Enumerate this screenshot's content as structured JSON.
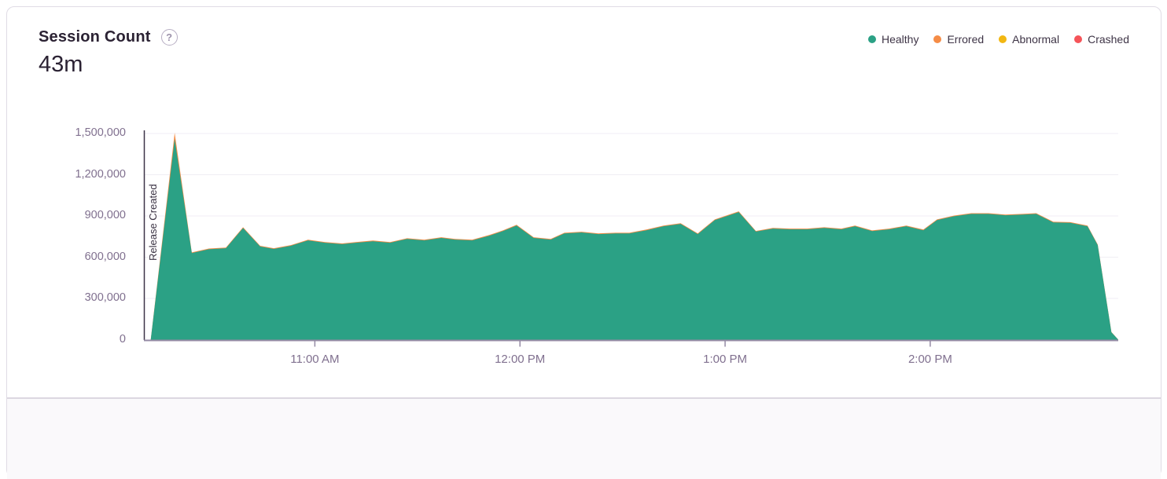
{
  "card": {
    "title": "Session Count",
    "help_icon": "?",
    "big_value": "43m",
    "legend": [
      {
        "label": "Healthy",
        "color": "#2ba185"
      },
      {
        "label": "Errored",
        "color": "#f58c46"
      },
      {
        "label": "Abnormal",
        "color": "#f2b712"
      },
      {
        "label": "Crashed",
        "color": "#f55459"
      }
    ]
  },
  "chart_data": {
    "type": "area",
    "stacked": true,
    "title": "Session Count",
    "ylabel": "",
    "xlabel": "",
    "unit": "sessions",
    "grid": true,
    "legend_position": "top-right",
    "x_axis": {
      "start_time": "10:10 AM",
      "end_time": "2:55 PM",
      "t_unit": "minutes after 10:10 AM",
      "tick_minutes": [
        50,
        110,
        170,
        230
      ],
      "tick_labels": [
        "11:00 AM",
        "12:00 PM",
        "1:00 PM",
        "2:00 PM"
      ]
    },
    "y_axis": {
      "ticks": [
        0,
        300000,
        600000,
        900000,
        1200000,
        1500000
      ],
      "tick_labels": [
        "0",
        "300,000",
        "600,000",
        "900,000",
        "1,200,000",
        "1,500,000"
      ],
      "ylim": [
        0,
        1500000
      ]
    },
    "annotation": {
      "label": "Release Created",
      "at_minute": 0,
      "line_color": "#3d3548"
    },
    "series": [
      {
        "name": "Healthy",
        "color": "#2ba185",
        "points": [
          [
            2,
            0
          ],
          [
            9,
            1460000
          ],
          [
            14,
            630000
          ],
          [
            19,
            658000
          ],
          [
            24,
            665000
          ],
          [
            29,
            812000
          ],
          [
            34,
            678000
          ],
          [
            38,
            660000
          ],
          [
            43,
            683000
          ],
          [
            48,
            722000
          ],
          [
            53,
            705000
          ],
          [
            58,
            695000
          ],
          [
            62,
            705000
          ],
          [
            67,
            716000
          ],
          [
            72,
            705000
          ],
          [
            77,
            733000
          ],
          [
            82,
            722000
          ],
          [
            87,
            740000
          ],
          [
            91,
            728000
          ],
          [
            96,
            722000
          ],
          [
            101,
            756000
          ],
          [
            105,
            790000
          ],
          [
            109,
            830000
          ],
          [
            114,
            740000
          ],
          [
            119,
            728000
          ],
          [
            123,
            773000
          ],
          [
            128,
            780000
          ],
          [
            133,
            768000
          ],
          [
            138,
            773000
          ],
          [
            142,
            773000
          ],
          [
            147,
            796000
          ],
          [
            152,
            825000
          ],
          [
            157,
            842000
          ],
          [
            162,
            768000
          ],
          [
            167,
            870000
          ],
          [
            174,
            928000
          ],
          [
            179,
            786000
          ],
          [
            184,
            808000
          ],
          [
            189,
            803000
          ],
          [
            194,
            803000
          ],
          [
            199,
            813000
          ],
          [
            204,
            803000
          ],
          [
            208,
            825000
          ],
          [
            213,
            790000
          ],
          [
            218,
            803000
          ],
          [
            223,
            825000
          ],
          [
            228,
            796000
          ],
          [
            232,
            870000
          ],
          [
            237,
            898000
          ],
          [
            242,
            915000
          ],
          [
            247,
            915000
          ],
          [
            252,
            905000
          ],
          [
            257,
            910000
          ],
          [
            261,
            915000
          ],
          [
            266,
            853000
          ],
          [
            271,
            850000
          ],
          [
            276,
            825000
          ],
          [
            279,
            688000
          ],
          [
            283,
            54000
          ],
          [
            285,
            0
          ]
        ]
      },
      {
        "name": "Errored",
        "color": "#f58c46",
        "points": [
          [
            2,
            0
          ],
          [
            9,
            45000
          ],
          [
            14,
            5000
          ],
          [
            19,
            5000
          ],
          [
            24,
            5000
          ],
          [
            29,
            6000
          ],
          [
            34,
            5000
          ],
          [
            38,
            5000
          ],
          [
            43,
            5000
          ],
          [
            48,
            5000
          ],
          [
            53,
            5000
          ],
          [
            58,
            5000
          ],
          [
            62,
            5000
          ],
          [
            67,
            5000
          ],
          [
            72,
            5000
          ],
          [
            77,
            5000
          ],
          [
            82,
            5000
          ],
          [
            87,
            5000
          ],
          [
            91,
            5000
          ],
          [
            96,
            5000
          ],
          [
            101,
            5000
          ],
          [
            105,
            5000
          ],
          [
            109,
            6000
          ],
          [
            114,
            5000
          ],
          [
            119,
            5000
          ],
          [
            123,
            5000
          ],
          [
            128,
            5000
          ],
          [
            133,
            5000
          ],
          [
            138,
            5000
          ],
          [
            142,
            5000
          ],
          [
            147,
            5000
          ],
          [
            152,
            5000
          ],
          [
            157,
            5000
          ],
          [
            162,
            5000
          ],
          [
            167,
            5000
          ],
          [
            174,
            6000
          ],
          [
            179,
            5000
          ],
          [
            184,
            5000
          ],
          [
            189,
            5000
          ],
          [
            194,
            5000
          ],
          [
            199,
            5000
          ],
          [
            204,
            5000
          ],
          [
            208,
            5000
          ],
          [
            213,
            5000
          ],
          [
            218,
            5000
          ],
          [
            223,
            5000
          ],
          [
            228,
            5000
          ],
          [
            232,
            5000
          ],
          [
            237,
            5000
          ],
          [
            242,
            5000
          ],
          [
            247,
            5000
          ],
          [
            252,
            5000
          ],
          [
            257,
            5000
          ],
          [
            261,
            5000
          ],
          [
            266,
            5000
          ],
          [
            271,
            5000
          ],
          [
            276,
            5000
          ],
          [
            279,
            4000
          ],
          [
            283,
            2000
          ],
          [
            285,
            0
          ]
        ]
      },
      {
        "name": "Abnormal",
        "color": "#f2b712",
        "points": []
      },
      {
        "name": "Crashed",
        "color": "#f55459",
        "points": []
      }
    ]
  }
}
